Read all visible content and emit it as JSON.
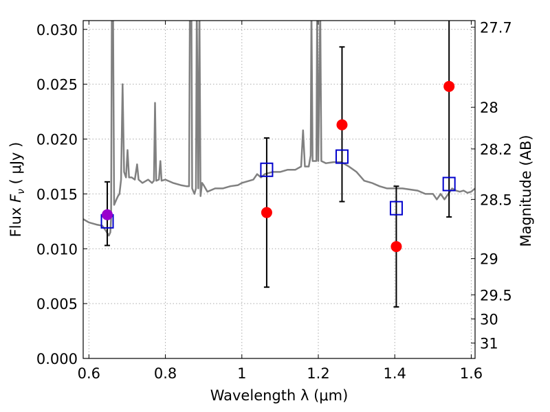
{
  "chart_data": {
    "type": "scatter",
    "xlabel": "Wavelength  λ (μm)",
    "ylabel_parts": {
      "prefix": "Flux  ",
      "symbol": "F",
      "subscript": "ν",
      "unit": "  ( μJy )"
    },
    "y2label": "Magnitude (AB)",
    "xlim": [
      0.585,
      1.61
    ],
    "ylim": [
      0.0,
      0.0308
    ],
    "grid": true,
    "x_ticks": [
      {
        "value": 0.6,
        "label": "0.6"
      },
      {
        "value": 0.8,
        "label": "0.8"
      },
      {
        "value": 1.0,
        "label": "1"
      },
      {
        "value": 1.2,
        "label": "1.2"
      },
      {
        "value": 1.4,
        "label": "1.4"
      },
      {
        "value": 1.6,
        "label": "1.6"
      }
    ],
    "y_ticks": [
      {
        "value": 0.0,
        "label": "0.000"
      },
      {
        "value": 0.005,
        "label": "0.005"
      },
      {
        "value": 0.01,
        "label": "0.010"
      },
      {
        "value": 0.015,
        "label": "0.015"
      },
      {
        "value": 0.02,
        "label": "0.020"
      },
      {
        "value": 0.025,
        "label": "0.025"
      },
      {
        "value": 0.03,
        "label": "0.030"
      }
    ],
    "magnitude_ticks": [
      {
        "label": "27.7",
        "flux": 0.0302
      },
      {
        "label": "28",
        "flux": 0.0229
      },
      {
        "label": "28.2",
        "flux": 0.0191
      },
      {
        "label": "28.5",
        "flux": 0.0145
      },
      {
        "label": "29",
        "flux": 0.0091
      },
      {
        "label": "29.5",
        "flux": 0.0058
      },
      {
        "label": "30",
        "flux": 0.0036
      },
      {
        "label": "31",
        "flux": 0.0014
      }
    ],
    "colors": {
      "spectrum": "#808080",
      "observed": "#ff0000",
      "model": "#0000cc",
      "highlight": "#9900cc",
      "errorbar": "#000000",
      "grid": "#aaaaaa"
    },
    "series": [
      {
        "marker": "open-square",
        "points": [
          {
            "x": 0.648,
            "y": 0.0125
          },
          {
            "x": 1.065,
            "y": 0.0172
          },
          {
            "x": 1.262,
            "y": 0.0184
          },
          {
            "x": 1.404,
            "y": 0.0137
          },
          {
            "x": 1.542,
            "y": 0.0159
          }
        ]
      },
      {
        "marker": "filled-circle",
        "points": [
          {
            "x": 0.648,
            "y": 0.0131,
            "ylow": 0.0103,
            "yhigh": 0.0161,
            "color": "#9900cc"
          },
          {
            "x": 1.065,
            "y": 0.0133,
            "ylow": 0.0065,
            "yhigh": 0.0201
          },
          {
            "x": 1.262,
            "y": 0.0213,
            "ylow": 0.0143,
            "yhigh": 0.0284
          },
          {
            "x": 1.404,
            "y": 0.0102,
            "ylow": 0.0047,
            "yhigh": 0.0157
          },
          {
            "x": 1.542,
            "y": 0.0248,
            "ylow": 0.0129,
            "yhigh": 0.0308
          }
        ]
      },
      {
        "marker": "line",
        "points": [
          [
            0.585,
            0.0127
          ],
          [
            0.6,
            0.0124
          ],
          [
            0.62,
            0.0122
          ],
          [
            0.635,
            0.0121
          ],
          [
            0.645,
            0.0116
          ],
          [
            0.652,
            0.0112
          ],
          [
            0.656,
            0.0115
          ],
          [
            0.658,
            0.0128
          ],
          [
            0.66,
            0.032
          ],
          [
            0.663,
            0.032
          ],
          [
            0.666,
            0.014
          ],
          [
            0.672,
            0.0145
          ],
          [
            0.676,
            0.0148
          ],
          [
            0.68,
            0.015
          ],
          [
            0.684,
            0.0163
          ],
          [
            0.688,
            0.025
          ],
          [
            0.692,
            0.017
          ],
          [
            0.697,
            0.0165
          ],
          [
            0.701,
            0.019
          ],
          [
            0.705,
            0.0165
          ],
          [
            0.712,
            0.0165
          ],
          [
            0.72,
            0.0163
          ],
          [
            0.726,
            0.0177
          ],
          [
            0.73,
            0.0163
          ],
          [
            0.74,
            0.016
          ],
          [
            0.755,
            0.0163
          ],
          [
            0.765,
            0.016
          ],
          [
            0.77,
            0.0162
          ],
          [
            0.773,
            0.0233
          ],
          [
            0.776,
            0.0162
          ],
          [
            0.783,
            0.0163
          ],
          [
            0.787,
            0.018
          ],
          [
            0.79,
            0.0162
          ],
          [
            0.8,
            0.0163
          ],
          [
            0.82,
            0.016
          ],
          [
            0.84,
            0.0158
          ],
          [
            0.855,
            0.0157
          ],
          [
            0.862,
            0.0157
          ],
          [
            0.864,
            0.032
          ],
          [
            0.868,
            0.032
          ],
          [
            0.87,
            0.0155
          ],
          [
            0.876,
            0.015
          ],
          [
            0.88,
            0.0155
          ],
          [
            0.882,
            0.032
          ],
          [
            0.886,
            0.0155
          ],
          [
            0.889,
            0.032
          ],
          [
            0.892,
            0.0148
          ],
          [
            0.896,
            0.016
          ],
          [
            0.9,
            0.0158
          ],
          [
            0.91,
            0.0152
          ],
          [
            0.93,
            0.0155
          ],
          [
            0.95,
            0.0155
          ],
          [
            0.97,
            0.0157
          ],
          [
            0.99,
            0.0158
          ],
          [
            1.0,
            0.016
          ],
          [
            1.02,
            0.0162
          ],
          [
            1.03,
            0.0163
          ],
          [
            1.04,
            0.0168
          ],
          [
            1.05,
            0.0165
          ],
          [
            1.06,
            0.0168
          ],
          [
            1.08,
            0.017
          ],
          [
            1.1,
            0.017
          ],
          [
            1.12,
            0.0172
          ],
          [
            1.14,
            0.0172
          ],
          [
            1.155,
            0.0175
          ],
          [
            1.16,
            0.0208
          ],
          [
            1.165,
            0.0175
          ],
          [
            1.175,
            0.0175
          ],
          [
            1.18,
            0.0185
          ],
          [
            1.182,
            0.032
          ],
          [
            1.185,
            0.018
          ],
          [
            1.195,
            0.018
          ],
          [
            1.197,
            0.032
          ],
          [
            1.2,
            0.018
          ],
          [
            1.205,
            0.032
          ],
          [
            1.208,
            0.018
          ],
          [
            1.22,
            0.0178
          ],
          [
            1.24,
            0.0179
          ],
          [
            1.26,
            0.0179
          ],
          [
            1.28,
            0.0175
          ],
          [
            1.3,
            0.017
          ],
          [
            1.32,
            0.0162
          ],
          [
            1.34,
            0.016
          ],
          [
            1.36,
            0.0157
          ],
          [
            1.38,
            0.0155
          ],
          [
            1.4,
            0.0155
          ],
          [
            1.42,
            0.0155
          ],
          [
            1.44,
            0.0154
          ],
          [
            1.46,
            0.0153
          ],
          [
            1.48,
            0.015
          ],
          [
            1.5,
            0.015
          ],
          [
            1.51,
            0.0145
          ],
          [
            1.52,
            0.015
          ],
          [
            1.53,
            0.0145
          ],
          [
            1.54,
            0.015
          ],
          [
            1.55,
            0.0155
          ],
          [
            1.56,
            0.0153
          ],
          [
            1.57,
            0.0152
          ],
          [
            1.58,
            0.0153
          ],
          [
            1.59,
            0.0151
          ],
          [
            1.6,
            0.0152
          ],
          [
            1.61,
            0.0155
          ]
        ]
      }
    ]
  }
}
